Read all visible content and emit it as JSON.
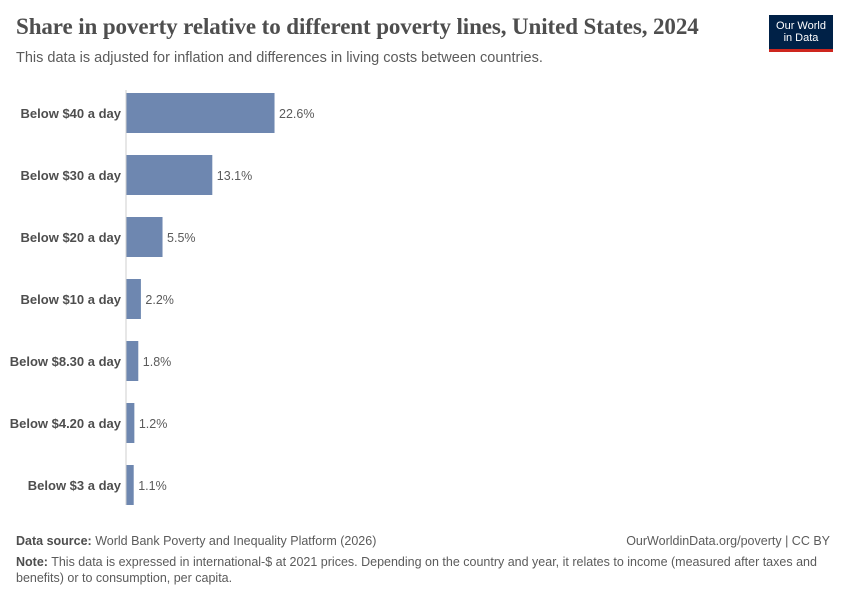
{
  "header": {
    "title": "Share in poverty relative to different poverty lines, United States, 2024",
    "subtitle": "This data is adjusted for inflation and differences in living costs between countries.",
    "logo_line1": "Our World",
    "logo_line2": "in Data"
  },
  "chart_data": {
    "type": "bar",
    "orientation": "horizontal",
    "categories": [
      "Below $40 a day",
      "Below $30 a day",
      "Below $20 a day",
      "Below $10 a day",
      "Below $8.30 a day",
      "Below $4.20 a day",
      "Below $3 a day"
    ],
    "values": [
      22.6,
      13.1,
      5.5,
      2.2,
      1.8,
      1.2,
      1.1
    ],
    "value_labels": [
      "22.6%",
      "13.1%",
      "5.5%",
      "2.2%",
      "1.8%",
      "1.2%",
      "1.1%"
    ],
    "unit": "%",
    "bar_color": "#6e87b0",
    "title": "Share in poverty relative to different poverty lines, United States, 2024",
    "xlabel": "",
    "ylabel": "",
    "grid": false
  },
  "footer": {
    "source_label": "Data source:",
    "source_text": "World Bank Poverty and Inequality Platform (2026)",
    "url": "OurWorldinData.org/poverty | CC BY",
    "note_label": "Note:",
    "note_text": "This data is expressed in international-$ at 2021 prices. Depending on the country and year, it relates to income (measured after taxes and benefits) or to consumption, per capita."
  }
}
